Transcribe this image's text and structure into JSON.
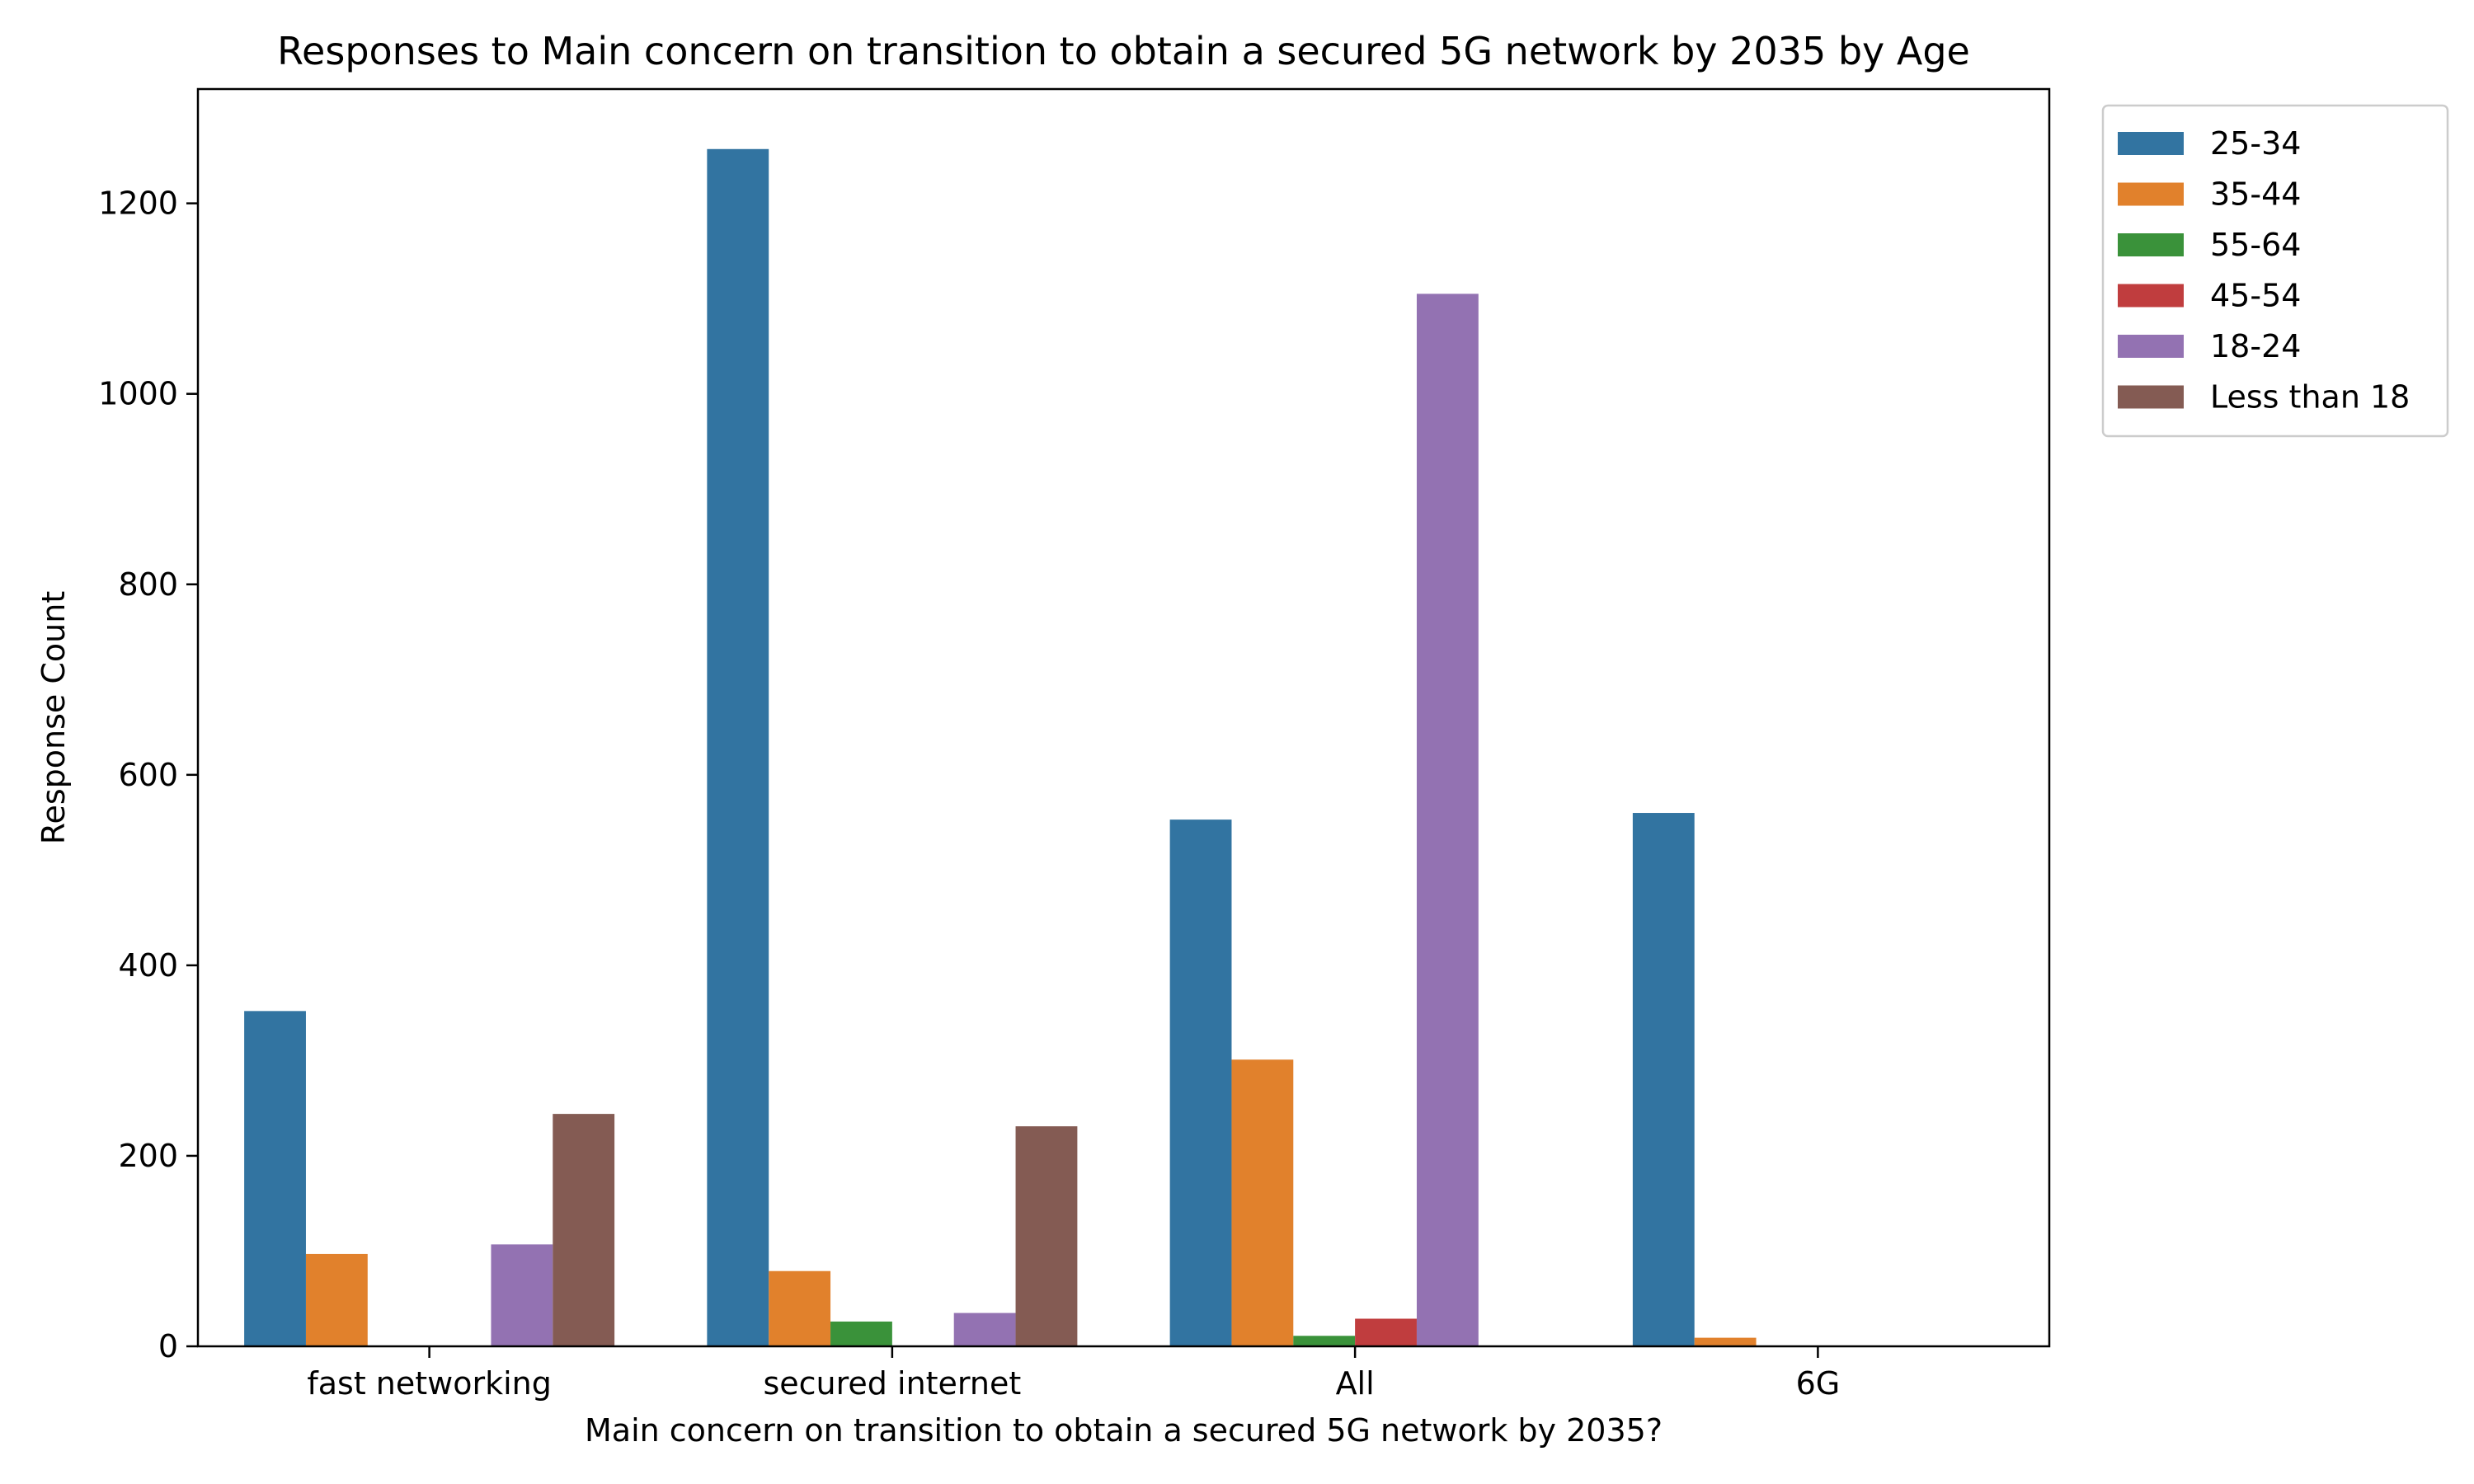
{
  "chart_data": {
    "type": "bar",
    "title": "Responses to Main concern on transition to obtain a secured 5G network by 2035 by Age",
    "xlabel": "Main concern on transition to obtain a secured 5G network by 2035?",
    "ylabel": "Response Count",
    "categories": [
      "fast networking",
      "secured internet",
      "All",
      "6G"
    ],
    "ylim": [
      0,
      1320
    ],
    "yticks": [
      0,
      200,
      400,
      600,
      800,
      1000,
      1200
    ],
    "legend_position": "outside-top-right",
    "grid": false,
    "series": [
      {
        "name": "25-34",
        "color": "#3274a1",
        "values": [
          352,
          1257,
          553,
          560
        ]
      },
      {
        "name": "35-44",
        "color": "#e1812c",
        "values": [
          97,
          79,
          301,
          9
        ]
      },
      {
        "name": "55-64",
        "color": "#3a923a",
        "values": [
          0,
          26,
          11,
          0
        ]
      },
      {
        "name": "45-54",
        "color": "#c03d3e",
        "values": [
          0,
          0,
          29,
          0
        ]
      },
      {
        "name": "18-24",
        "color": "#9372b2",
        "values": [
          107,
          35,
          1105,
          0
        ]
      },
      {
        "name": "Less than 18",
        "color": "#845b53",
        "values": [
          244,
          231,
          0,
          0
        ]
      }
    ]
  }
}
